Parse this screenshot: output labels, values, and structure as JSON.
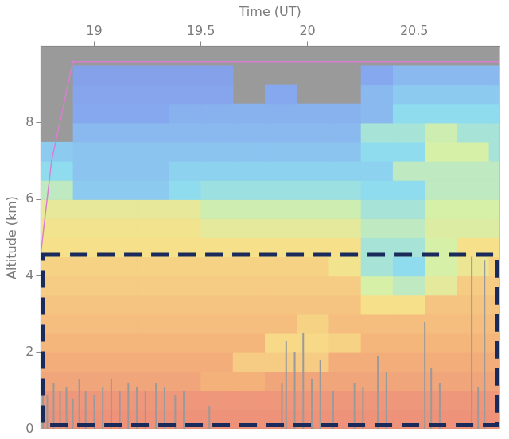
{
  "chart_data": {
    "type": "heatmap",
    "xlabel": "Time (UT)",
    "ylabel": "Altitude (km)",
    "xlim": [
      18.75,
      20.9
    ],
    "xticks": [
      19,
      19.5,
      20,
      20.5
    ],
    "ylim": [
      0,
      10
    ],
    "yticks": [
      0,
      2,
      4,
      6,
      8
    ],
    "grid": false,
    "heatmap": {
      "x_bins": [
        18.75,
        18.9,
        19.05,
        19.2,
        19.35,
        19.5,
        19.65,
        19.8,
        19.95,
        20.1,
        20.25,
        20.4,
        20.55,
        20.7,
        20.85,
        20.9
      ],
      "y_bins": [
        0,
        0.5,
        1,
        1.5,
        2,
        2.5,
        3,
        3.5,
        4,
        4.5,
        5,
        5.5,
        6,
        6.5,
        7,
        7.5,
        8,
        8.5,
        9,
        9.5
      ],
      "color_range": [
        0,
        1
      ],
      "cells": [
        [
          0.97,
          0.97,
          0.97,
          0.97,
          0.97,
          0.97,
          0.97,
          0.97,
          0.97,
          0.97,
          0.97,
          0.97,
          0.97,
          0.97,
          0.97
        ],
        [
          0.95,
          0.95,
          0.95,
          0.95,
          0.95,
          0.95,
          0.95,
          0.95,
          0.95,
          0.95,
          0.95,
          0.95,
          0.95,
          0.95,
          0.95
        ],
        [
          0.9,
          0.9,
          0.9,
          0.9,
          0.9,
          0.85,
          0.85,
          0.9,
          0.9,
          0.9,
          0.9,
          0.9,
          0.9,
          0.9,
          0.9
        ],
        [
          0.87,
          0.87,
          0.87,
          0.87,
          0.87,
          0.87,
          0.78,
          0.78,
          0.78,
          0.87,
          0.87,
          0.87,
          0.87,
          0.87,
          0.87
        ],
        [
          0.84,
          0.84,
          0.84,
          0.84,
          0.84,
          0.84,
          0.84,
          0.74,
          0.74,
          0.76,
          0.84,
          0.84,
          0.84,
          0.84,
          0.84
        ],
        [
          0.82,
          0.82,
          0.82,
          0.82,
          0.82,
          0.82,
          0.82,
          0.82,
          0.76,
          0.82,
          0.82,
          0.82,
          0.82,
          0.82,
          0.82
        ],
        [
          0.8,
          0.8,
          0.8,
          0.8,
          0.8,
          0.8,
          0.8,
          0.8,
          0.8,
          0.8,
          0.72,
          0.72,
          0.8,
          0.8,
          0.8
        ],
        [
          0.78,
          0.78,
          0.78,
          0.78,
          0.78,
          0.78,
          0.78,
          0.78,
          0.78,
          0.78,
          0.6,
          0.55,
          0.65,
          0.78,
          0.78
        ],
        [
          0.76,
          0.76,
          0.76,
          0.76,
          0.76,
          0.76,
          0.76,
          0.76,
          0.76,
          0.7,
          0.5,
          0.45,
          0.6,
          0.68,
          0.76
        ],
        [
          0.72,
          0.72,
          0.72,
          0.72,
          0.72,
          0.72,
          0.72,
          0.72,
          0.72,
          0.72,
          0.5,
          0.5,
          0.6,
          0.72,
          0.72
        ],
        [
          0.7,
          0.7,
          0.7,
          0.7,
          0.7,
          0.65,
          0.65,
          0.65,
          0.65,
          0.65,
          0.55,
          0.55,
          0.62,
          0.62,
          0.62
        ],
        [
          0.66,
          0.66,
          0.66,
          0.66,
          0.66,
          0.58,
          0.58,
          0.58,
          0.58,
          0.58,
          0.5,
          0.5,
          0.6,
          0.6,
          0.6
        ],
        [
          0.55,
          0.4,
          0.4,
          0.4,
          0.45,
          0.48,
          0.48,
          0.48,
          0.48,
          0.48,
          0.45,
          0.45,
          0.55,
          0.55,
          0.55
        ],
        [
          0.45,
          0.38,
          0.38,
          0.38,
          0.42,
          0.42,
          0.42,
          0.42,
          0.42,
          0.42,
          0.42,
          0.55,
          0.55,
          0.55,
          0.55
        ],
        [
          0.4,
          0.38,
          0.38,
          0.38,
          0.38,
          0.38,
          0.38,
          0.38,
          0.38,
          0.38,
          0.45,
          0.45,
          0.6,
          0.6,
          0.5
        ],
        [
          null,
          0.35,
          0.35,
          0.35,
          0.35,
          0.35,
          0.35,
          0.35,
          0.35,
          0.35,
          0.5,
          0.5,
          0.58,
          0.5,
          0.5
        ],
        [
          null,
          0.3,
          0.3,
          0.3,
          0.33,
          0.33,
          0.33,
          0.33,
          0.33,
          0.33,
          0.35,
          0.45,
          0.45,
          0.45,
          0.45
        ],
        [
          null,
          0.28,
          0.28,
          0.28,
          0.28,
          0.28,
          null,
          0.3,
          null,
          null,
          0.35,
          0.4,
          0.4,
          0.4,
          0.4
        ],
        [
          null,
          0.25,
          0.25,
          0.25,
          0.25,
          0.25,
          null,
          null,
          null,
          null,
          0.3,
          0.35,
          0.35,
          0.35,
          0.35
        ]
      ]
    },
    "spikes": {
      "x": [
        18.76,
        18.78,
        18.81,
        18.84,
        18.87,
        18.9,
        18.93,
        18.96,
        19.0,
        19.04,
        19.08,
        19.12,
        19.16,
        19.2,
        19.24,
        19.29,
        19.33,
        19.38,
        19.42,
        19.54,
        19.88,
        19.9,
        19.94,
        19.98,
        20.02,
        20.06,
        20.12,
        20.22,
        20.26,
        20.33,
        20.37,
        20.55,
        20.58,
        20.62,
        20.77,
        20.8,
        20.83
      ],
      "top": [
        1.3,
        0.9,
        1.2,
        1.0,
        1.1,
        0.8,
        1.3,
        1.0,
        0.9,
        1.1,
        1.3,
        1.0,
        1.2,
        1.1,
        1.0,
        1.2,
        1.1,
        0.9,
        1.0,
        0.6,
        1.2,
        2.3,
        2.0,
        2.5,
        1.3,
        1.8,
        1.0,
        1.2,
        1.1,
        1.9,
        1.5,
        2.8,
        1.6,
        1.2,
        4.5,
        1.1,
        4.4
      ]
    },
    "line": {
      "x": [
        18.75,
        18.8,
        18.85,
        18.9,
        20.9
      ],
      "y": [
        4.6,
        7.0,
        8.3,
        9.6,
        9.6
      ],
      "color": "#d77fd0"
    },
    "box": {
      "x": [
        18.76,
        20.89
      ],
      "y": [
        0.1,
        4.55
      ],
      "color": "#1a2a5a",
      "line_style": "dashed"
    }
  }
}
